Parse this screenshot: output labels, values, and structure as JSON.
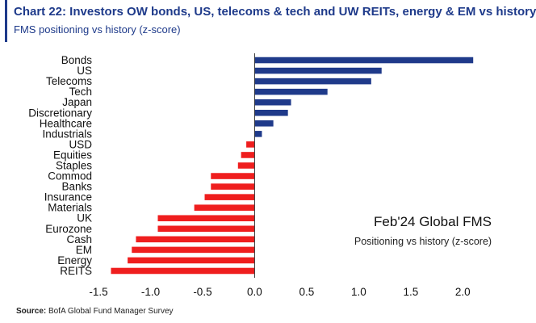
{
  "header": {
    "title": "Chart 22: Investors OW bonds, US, telecoms & tech and UW REITs, energy & EM vs history",
    "subtitle": "FMS positioning vs history (z-score)"
  },
  "annotation": {
    "title": "Feb'24 Global FMS",
    "subtitle": "Positioning vs history (z-score)"
  },
  "footer": {
    "source_label": "Source:",
    "source_text": " BofA Global Fund Manager Survey"
  },
  "colors": {
    "positive": "#1f3a8a",
    "negative": "#ef1e1e",
    "title": "#1e3a8a"
  },
  "chart_data": {
    "type": "bar",
    "orientation": "horizontal",
    "categories": [
      "Bonds",
      "US",
      "Telecoms",
      "Tech",
      "Japan",
      "Discretionary",
      "Healthcare",
      "Industrials",
      "USD",
      "Equities",
      "Staples",
      "Commod",
      "Banks",
      "Insurance",
      "Materials",
      "UK",
      "Eurozone",
      "Cash",
      "EM",
      "Energy",
      "REITS"
    ],
    "values": [
      2.1,
      1.22,
      1.12,
      0.7,
      0.35,
      0.32,
      0.18,
      0.07,
      -0.08,
      -0.13,
      -0.16,
      -0.42,
      -0.42,
      -0.48,
      -0.58,
      -0.93,
      -0.93,
      -1.14,
      -1.18,
      -1.22,
      -1.38
    ],
    "xlim": [
      -1.5,
      2.3
    ],
    "xticks": [
      -1.5,
      -1.0,
      -0.5,
      0.0,
      0.5,
      1.0,
      1.5,
      2.0
    ],
    "xtick_labels": [
      "-1.5",
      "-1.0",
      "-0.5",
      "0.0",
      "0.5",
      "1.0",
      "1.5",
      "2.0"
    ],
    "title": "Chart 22: Investors OW bonds, US, telecoms & tech and UW REITs, energy & EM vs history",
    "xlabel": "",
    "ylabel": ""
  }
}
